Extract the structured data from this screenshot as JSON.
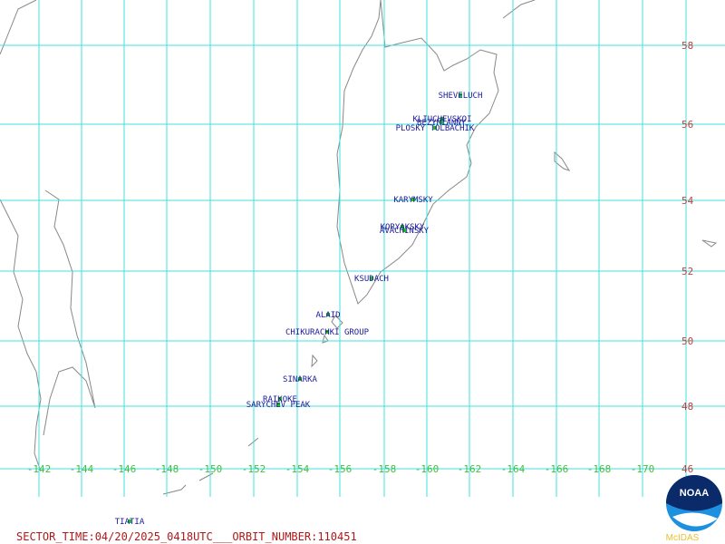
{
  "latitude_labels": [
    "58",
    "56",
    "54",
    "52",
    "50",
    "48",
    "46"
  ],
  "longitude_labels": [
    "-142",
    "-144",
    "-146",
    "-148",
    "-150",
    "-152",
    "-154",
    "-156",
    "-158",
    "-160",
    "-162",
    "-164",
    "-166",
    "-168",
    "-170"
  ],
  "volcanoes": [
    "SHEVELUCH",
    "KLIUCHEVSKOI",
    "BEZYMIANNY",
    "PLOSKY TOLBACHIK",
    "KARYMSKY",
    "KORYAKSKY",
    "AVACHINSKY",
    "KSUDACH",
    "ALAID",
    "CHIKURACHKI GROUP",
    "SINARKA",
    "RAIKOKE",
    "SARYCHEV PEAK",
    "TIATIA"
  ],
  "footer": "SECTOR_TIME:04/20/2025_0418UTC___ORBIT_NUMBER:110451",
  "logo": {
    "text": "NOAA",
    "caption": "McIDAS"
  }
}
